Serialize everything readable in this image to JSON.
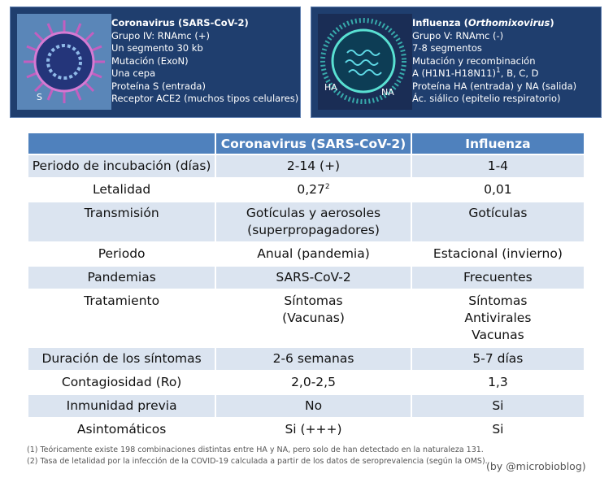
{
  "panels": [
    {
      "title": [
        "Coronavirus (SARS-CoV-2)"
      ],
      "lines": [
        "Grupo IV: RNAmc (+)",
        "Un segmento 30 kb",
        "Mutación (ExoN)",
        "Una cepa",
        "Proteína S (entrada)",
        "Receptor ACE2 (muchos tipos celulares)"
      ],
      "labels": [
        "S"
      ]
    },
    {
      "title": [
        "Influenza (",
        "Orthomixovirus",
        ")"
      ],
      "lines": [
        "Grupo V: RNAmc (-)",
        "7-8 segmentos",
        "Mutación y recombinación",
        {
          "text": "A (H1N1-H18N11)",
          "sup": "1",
          "after": ", B, C, D"
        },
        "Proteína HA (entrada) y NA (salida)",
        "Ác. siálico (epitelio respiratorio)"
      ],
      "labels": [
        "HA",
        "NA"
      ]
    }
  ],
  "table": {
    "header": [
      "Coronavirus (SARS-CoV-2)",
      "Influenza"
    ],
    "rows": [
      [
        [
          "Periodo de incubación (días)"
        ],
        [
          "2-14 (+)"
        ],
        [
          "1-4"
        ]
      ],
      [
        [
          "Letalidad"
        ],
        [
          {
            "text": "0,27",
            "sup": "2"
          }
        ],
        [
          "0,01"
        ]
      ],
      [
        [
          "Transmisión"
        ],
        [
          "Gotículas y aerosoles",
          "(superpropagadores)"
        ],
        [
          "Gotículas"
        ]
      ],
      [
        [
          "Periodo"
        ],
        [
          "Anual (pandemia)"
        ],
        [
          "Estacional (invierno)"
        ]
      ],
      [
        [
          "Pandemias"
        ],
        [
          "SARS-CoV-2"
        ],
        [
          "Frecuentes"
        ]
      ],
      [
        [
          "Tratamiento"
        ],
        [
          "Síntomas",
          "(Vacunas)"
        ],
        [
          "Síntomas",
          "Antivirales",
          "Vacunas"
        ]
      ],
      [
        [
          "Duración de los síntomas"
        ],
        [
          "2-6 semanas"
        ],
        [
          "5-7 días"
        ]
      ],
      [
        [
          "Contagiosidad (Ro)"
        ],
        [
          "2,0-2,5"
        ],
        [
          "1,3"
        ]
      ],
      [
        [
          "Inmunidad previa"
        ],
        [
          "No"
        ],
        [
          "Si"
        ]
      ],
      [
        [
          "Asintomáticos"
        ],
        [
          "Si (+++)"
        ],
        [
          "Si"
        ]
      ]
    ]
  },
  "footnotes": [
    "(1) Teóricamente existe 198 combinaciones distintas entre HA y NA, pero solo de han detectado en la naturaleza 131.",
    "(2) Tasa de letalidad por la infección de la COVID-19 calculada a partir de los datos de seroprevalencia (según la OMS)."
  ],
  "credit": "(by @microbioblog)"
}
